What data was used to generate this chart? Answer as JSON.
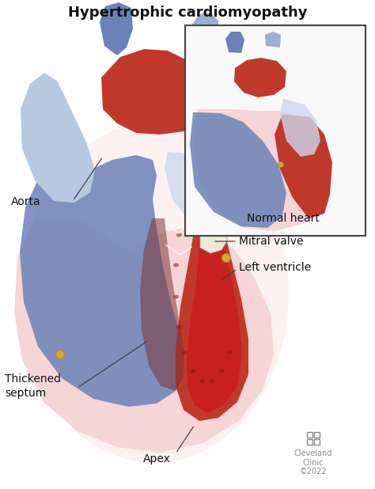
{
  "title": "Hypertrophic cardiomyopathy",
  "title_fontsize": 13,
  "title_fontweight": "bold",
  "bg_color": "#ffffff",
  "labels": {
    "aorta": "Aorta",
    "mitral_valve": "Mitral valve",
    "left_ventricle": "Left ventricle",
    "thickened_septum": "Thickened\nseptum",
    "apex": "Apex",
    "normal_heart": "Normal heart"
  },
  "label_fontsize": 10,
  "colors": {
    "red": "#c0392b",
    "bright_red": "#c82020",
    "dark_red": "#8b1a1a",
    "blue": "#6b82b8",
    "light_blue": "#9aafd4",
    "pale_blue": "#b8c8e0",
    "very_pale_blue": "#ccd8ee",
    "pink": "#f0c0c0",
    "light_pink": "#f5d5d5",
    "pale_pink": "#fae8e8",
    "cream": "#f5f0e0",
    "yellow": "#d4a832",
    "dark_yellow": "#b08820",
    "dark": "#333333",
    "gray": "#888888",
    "light_gray": "#cccccc",
    "inset_border": "#444444",
    "inset_bg": "#f9f9f9"
  },
  "cleveland_clinic": "Cleveland\nClinic\n©2022",
  "cleveland_fontsize": 7
}
